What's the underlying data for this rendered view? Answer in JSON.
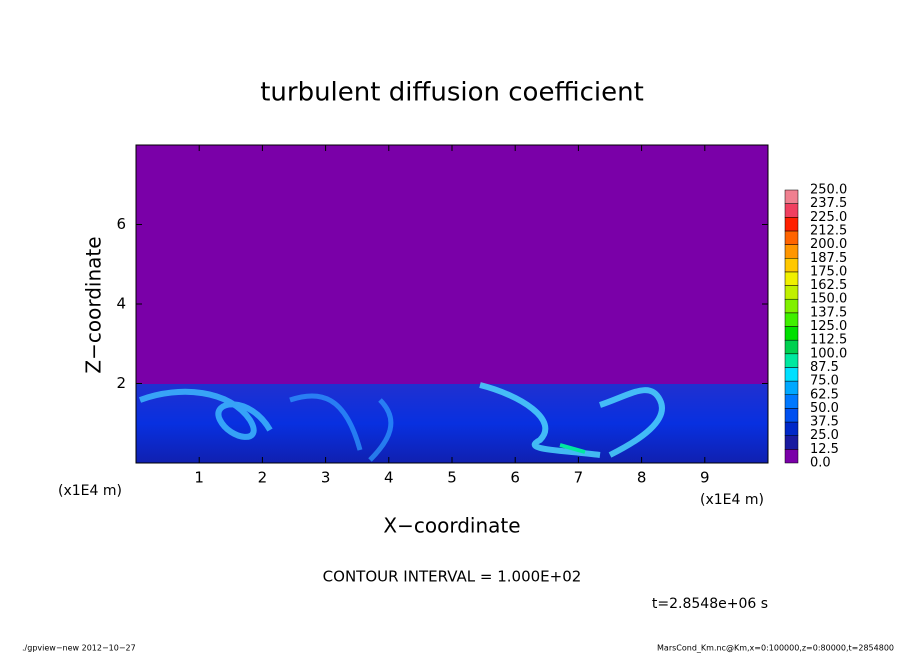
{
  "chart_data": {
    "type": "contour",
    "title": "turbulent diffusion coefficient",
    "xlabel": "X−coordinate",
    "ylabel": "Z−coordinate",
    "x_unit": "(x1E4 m)",
    "y_unit": "(x1E4 m)",
    "xlim": [
      0,
      10
    ],
    "xticks": [
      1,
      2,
      3,
      4,
      5,
      6,
      7,
      8,
      9
    ],
    "ylim": [
      0,
      8
    ],
    "yticks": [
      2,
      4,
      6
    ],
    "contour_interval": "CONTOUR INTERVAL = 1.000E+02",
    "time": "t=2.8548e+06 s",
    "footer_left": "./gpview−new   2012−10−27",
    "footer_right": "MarsCond_Km.nc@Km,x=0:100000,z=0:80000,t=2854800",
    "colorbar": {
      "levels": [
        {
          "value": 0,
          "label": "0.0"
        },
        {
          "value": 12.5,
          "label": "12.5"
        },
        {
          "value": 25,
          "label": "25.0"
        },
        {
          "value": 37.5,
          "label": "37.5"
        },
        {
          "value": 50,
          "label": "50.0"
        },
        {
          "value": 62.5,
          "label": "62.5"
        },
        {
          "value": 75,
          "label": "75.0"
        },
        {
          "value": 87.5,
          "label": "87.5"
        },
        {
          "value": 100,
          "label": "100.0"
        },
        {
          "value": 112.5,
          "label": "112.5"
        },
        {
          "value": 125,
          "label": "125.0"
        },
        {
          "value": 137.5,
          "label": "137.5"
        },
        {
          "value": 150,
          "label": "150.0"
        },
        {
          "value": 162.5,
          "label": "162.5"
        },
        {
          "value": 175,
          "label": "175.0"
        },
        {
          "value": 187.5,
          "label": "187.5"
        },
        {
          "value": 200,
          "label": "200.0"
        },
        {
          "value": 212.5,
          "label": "212.5"
        },
        {
          "value": 225,
          "label": "225.0"
        },
        {
          "value": 237.5,
          "label": "237.5"
        },
        {
          "value": 250,
          "label": "250.0"
        }
      ],
      "colors": [
        "#7a00a8",
        "#1a1aa0",
        "#0028c8",
        "#0050f0",
        "#0078ff",
        "#00a8ff",
        "#00e0ff",
        "#00e8a0",
        "#00d050",
        "#00e000",
        "#40f000",
        "#80f000",
        "#c0f000",
        "#f0f000",
        "#ffc800",
        "#ff9600",
        "#ff6400",
        "#ff2000",
        "#f04060",
        "#f08090"
      ]
    }
  }
}
